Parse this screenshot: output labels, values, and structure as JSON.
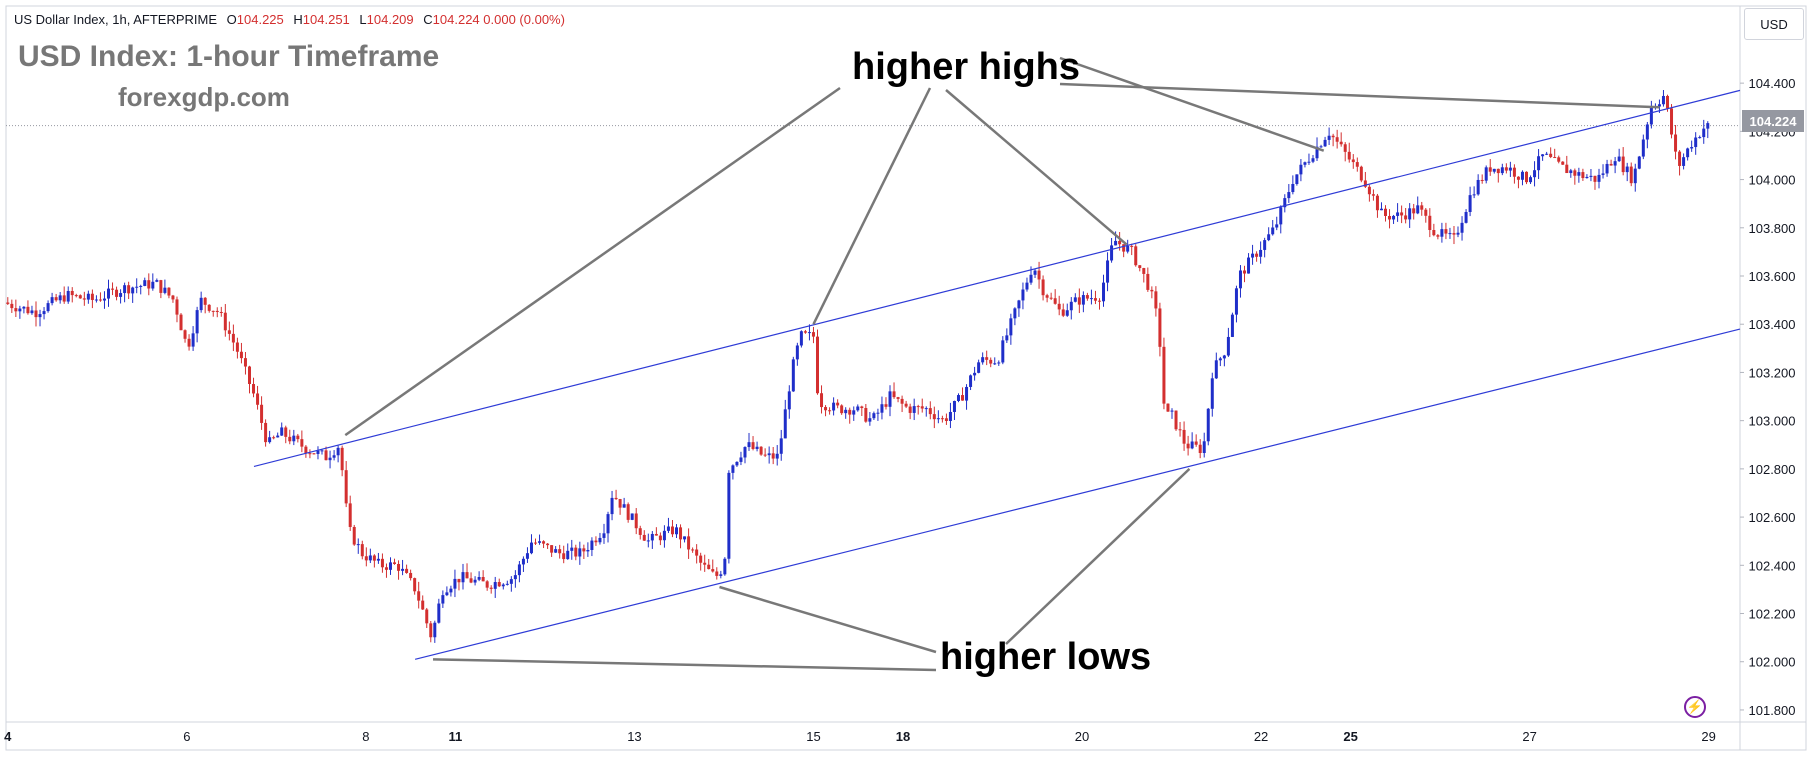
{
  "header": {
    "symbol": "US Dollar Index, 1h, AFTERPRIME",
    "open_label": "O",
    "open": "104.225",
    "high_label": "H",
    "high": "104.251",
    "low_label": "L",
    "low": "104.209",
    "close_label": "C",
    "close": "104.224",
    "change": "0.000 (0.00%)"
  },
  "title": "USD Index: 1-hour Timeframe",
  "subtitle": "forexgdp.com",
  "annotations": {
    "higher_highs": "higher highs",
    "higher_lows": "higher lows"
  },
  "currency_button": "USD",
  "current_price_tag": "104.224",
  "logo_icon": "lightning-icon",
  "colors": {
    "up": "#1f2ec9",
    "down": "#d32f2f",
    "channel": "#2e3bd6",
    "callout": "#787878",
    "price_line": "#9598a1"
  },
  "chart_data": {
    "type": "candlestick",
    "y_ticks": [
      "104.400",
      "104.200",
      "104.000",
      "103.800",
      "103.600",
      "103.400",
      "103.200",
      "103.000",
      "102.800",
      "102.600",
      "102.400",
      "102.200",
      "102.000",
      "101.800"
    ],
    "y_tick_values": [
      104.4,
      104.2,
      104.0,
      103.8,
      103.6,
      103.4,
      103.2,
      103.0,
      102.8,
      102.6,
      102.4,
      102.2,
      102.0,
      101.8
    ],
    "ylim": [
      101.75,
      104.72
    ],
    "x_ticks": [
      {
        "label": "4",
        "bold": true,
        "t": 0
      },
      {
        "label": "6",
        "bold": false,
        "t": 2
      },
      {
        "label": "8",
        "bold": false,
        "t": 4
      },
      {
        "label": "11",
        "bold": true,
        "t": 5
      },
      {
        "label": "13",
        "bold": false,
        "t": 7
      },
      {
        "label": "15",
        "bold": false,
        "t": 9
      },
      {
        "label": "18",
        "bold": true,
        "t": 10
      },
      {
        "label": "20",
        "bold": false,
        "t": 12
      },
      {
        "label": "22",
        "bold": false,
        "t": 14
      },
      {
        "label": "25",
        "bold": true,
        "t": 15
      },
      {
        "label": "27",
        "bold": false,
        "t": 17
      },
      {
        "label": "29",
        "bold": false,
        "t": 19
      }
    ],
    "tlim": [
      -0.02,
      19.35
    ],
    "last_price": 104.224,
    "anchors": [
      [
        0.0,
        103.49
      ],
      [
        0.35,
        103.45
      ],
      [
        0.7,
        103.52
      ],
      [
        1.0,
        103.5
      ],
      [
        1.35,
        103.55
      ],
      [
        1.7,
        103.57
      ],
      [
        1.9,
        103.5
      ],
      [
        2.05,
        103.3
      ],
      [
        2.2,
        103.5
      ],
      [
        2.4,
        103.45
      ],
      [
        2.6,
        103.3
      ],
      [
        2.8,
        103.1
      ],
      [
        2.95,
        102.9
      ],
      [
        3.1,
        102.95
      ],
      [
        3.4,
        102.88
      ],
      [
        3.6,
        102.85
      ],
      [
        3.75,
        102.9
      ],
      [
        3.85,
        102.55
      ],
      [
        4.0,
        102.45
      ],
      [
        4.2,
        102.4
      ],
      [
        4.4,
        102.4
      ],
      [
        4.6,
        102.3
      ],
      [
        4.78,
        102.1
      ],
      [
        4.9,
        102.3
      ],
      [
        5.1,
        102.35
      ],
      [
        5.4,
        102.32
      ],
      [
        5.7,
        102.35
      ],
      [
        5.9,
        102.5
      ],
      [
        6.2,
        102.45
      ],
      [
        6.45,
        102.45
      ],
      [
        6.7,
        102.55
      ],
      [
        6.8,
        102.7
      ],
      [
        7.0,
        102.6
      ],
      [
        7.2,
        102.5
      ],
      [
        7.5,
        102.55
      ],
      [
        7.6,
        102.5
      ],
      [
        7.8,
        102.4
      ],
      [
        7.95,
        102.35
      ],
      [
        8.05,
        102.4
      ],
      [
        8.1,
        102.8
      ],
      [
        8.3,
        102.9
      ],
      [
        8.5,
        102.85
      ],
      [
        8.65,
        102.85
      ],
      [
        8.8,
        103.2
      ],
      [
        8.9,
        103.35
      ],
      [
        9.05,
        103.35
      ],
      [
        9.1,
        103.08
      ],
      [
        9.3,
        103.05
      ],
      [
        9.5,
        103.05
      ],
      [
        9.7,
        103.0
      ],
      [
        9.9,
        103.1
      ],
      [
        10.1,
        103.05
      ],
      [
        10.3,
        103.05
      ],
      [
        10.5,
        103.0
      ],
      [
        10.7,
        103.1
      ],
      [
        10.9,
        103.25
      ],
      [
        11.1,
        103.25
      ],
      [
        11.3,
        103.45
      ],
      [
        11.5,
        103.65
      ],
      [
        11.6,
        103.55
      ],
      [
        11.8,
        103.45
      ],
      [
        12.0,
        103.5
      ],
      [
        12.25,
        103.52
      ],
      [
        12.4,
        103.75
      ],
      [
        12.6,
        103.7
      ],
      [
        12.8,
        103.55
      ],
      [
        12.9,
        103.4
      ],
      [
        12.97,
        103.02
      ],
      [
        13.05,
        103.02
      ],
      [
        13.2,
        102.9
      ],
      [
        13.4,
        102.88
      ],
      [
        13.5,
        103.2
      ],
      [
        13.65,
        103.3
      ],
      [
        13.8,
        103.6
      ],
      [
        14.0,
        103.7
      ],
      [
        14.2,
        103.8
      ],
      [
        14.4,
        104.0
      ],
      [
        14.6,
        104.1
      ],
      [
        14.8,
        104.2
      ],
      [
        15.0,
        104.1
      ],
      [
        15.2,
        104.0
      ],
      [
        15.4,
        103.85
      ],
      [
        15.6,
        103.85
      ],
      [
        15.8,
        103.88
      ],
      [
        16.0,
        103.78
      ],
      [
        16.2,
        103.75
      ],
      [
        16.4,
        103.95
      ],
      [
        16.6,
        104.05
      ],
      [
        16.8,
        104.05
      ],
      [
        17.0,
        104.0
      ],
      [
        17.2,
        104.1
      ],
      [
        17.4,
        104.05
      ],
      [
        17.6,
        104.02
      ],
      [
        17.8,
        104.0
      ],
      [
        18.0,
        104.1
      ],
      [
        18.2,
        104.0
      ],
      [
        18.4,
        104.3
      ],
      [
        18.55,
        104.35
      ],
      [
        18.7,
        104.05
      ],
      [
        18.85,
        104.15
      ],
      [
        19.0,
        104.22
      ]
    ],
    "channel_upper": [
      [
        2.75,
        102.81
      ],
      [
        19.35,
        104.37
      ]
    ],
    "channel_lower": [
      [
        4.55,
        102.01
      ],
      [
        19.35,
        103.38
      ]
    ],
    "higher_highs_points": [
      [
        3.77,
        102.94
      ],
      [
        9.0,
        103.4
      ],
      [
        12.5,
        103.73
      ],
      [
        14.7,
        104.12
      ],
      [
        18.45,
        104.3
      ]
    ],
    "higher_lows_points": [
      [
        4.75,
        102.01
      ],
      [
        7.95,
        102.31
      ],
      [
        13.2,
        102.8
      ]
    ]
  }
}
